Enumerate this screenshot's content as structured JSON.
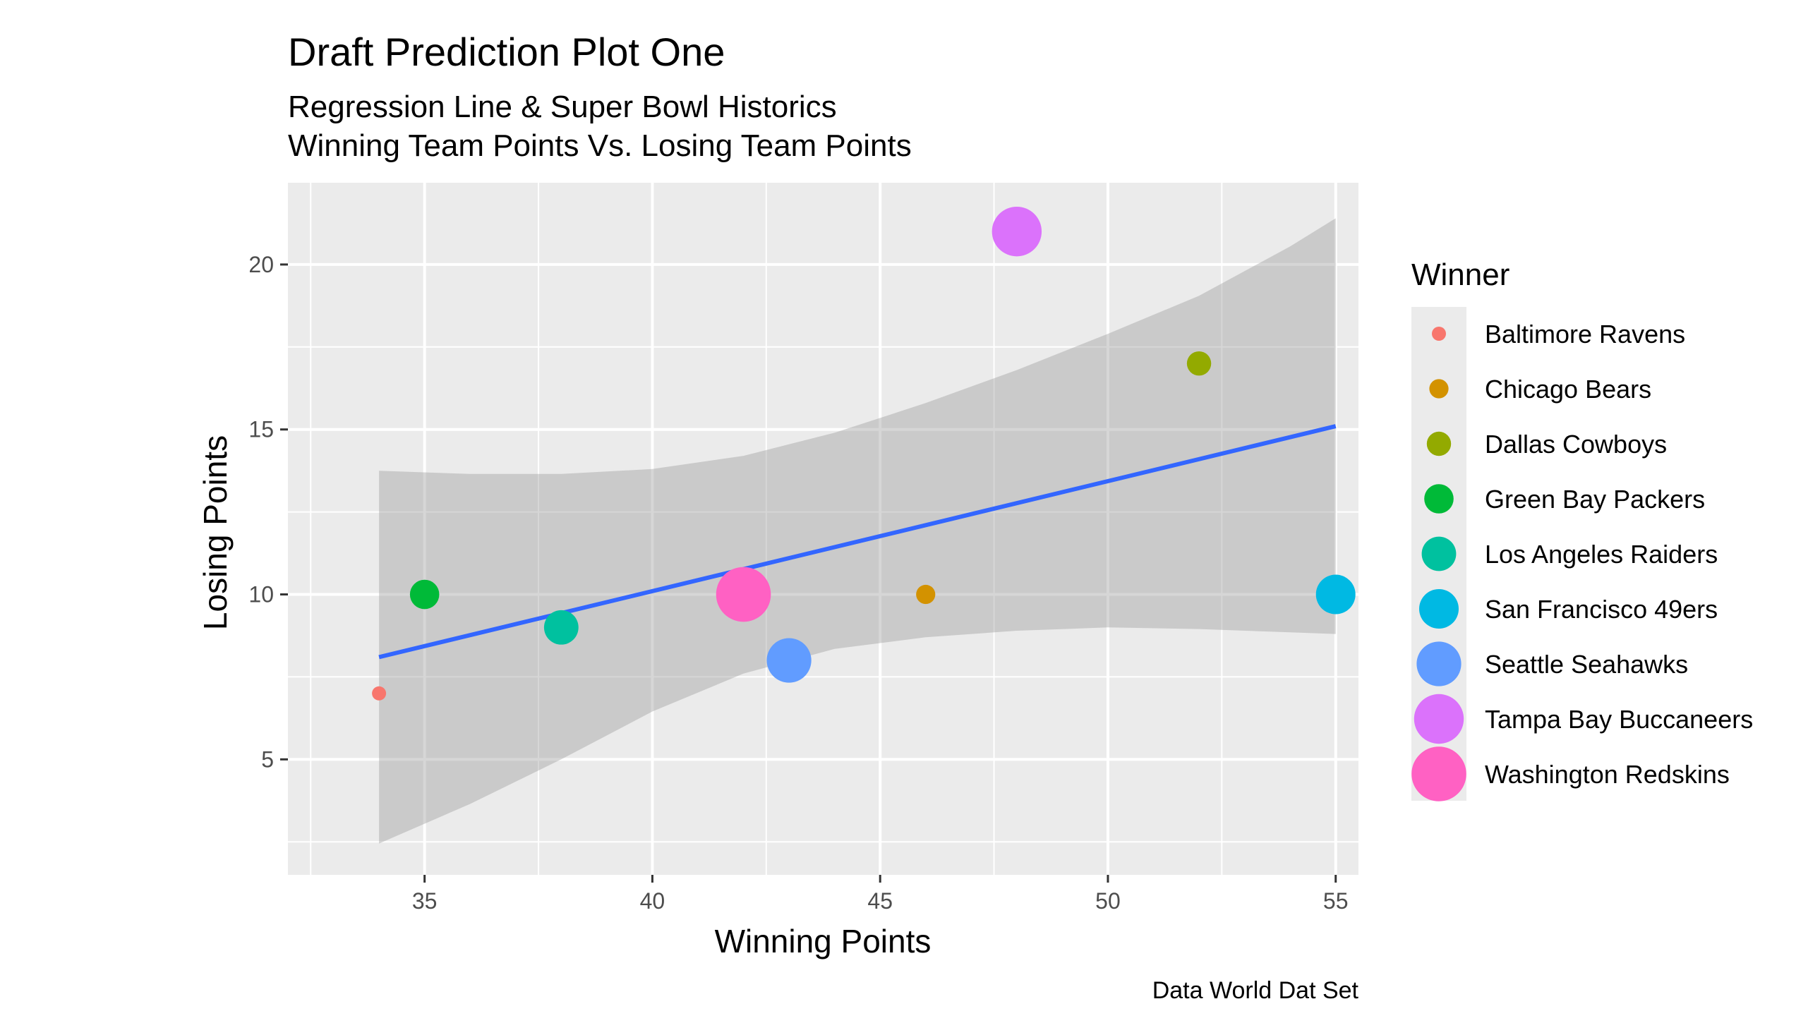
{
  "chart_data": {
    "type": "scatter",
    "title": "Draft Prediction Plot One",
    "subtitle_lines": [
      "Regression Line & Super Bowl Historics",
      "Winning Team Points Vs. Losing Team Points"
    ],
    "xlabel": "Winning Points",
    "ylabel": "Losing Points",
    "caption": "Data World Dat Set",
    "xlim": [
      32.0,
      55.5
    ],
    "ylim": [
      1.5,
      22.5
    ],
    "x_ticks": [
      35,
      40,
      45,
      50,
      55
    ],
    "y_ticks": [
      5,
      10,
      15,
      20
    ],
    "grid": true,
    "legend": {
      "title": "Winner",
      "position": "right",
      "entries": [
        {
          "name": "Baltimore Ravens",
          "color": "#F8766D"
        },
        {
          "name": "Chicago Bears",
          "color": "#D39200"
        },
        {
          "name": "Dallas Cowboys",
          "color": "#93AA00"
        },
        {
          "name": "Green Bay Packers",
          "color": "#00BA38"
        },
        {
          "name": "Los Angeles Raiders",
          "color": "#00C19F"
        },
        {
          "name": "San Francisco 49ers",
          "color": "#00B9E3"
        },
        {
          "name": "Seattle Seahawks",
          "color": "#619CFF"
        },
        {
          "name": "Tampa Bay Buccaneers",
          "color": "#DB72FB"
        },
        {
          "name": "Washington Redskins",
          "color": "#FF61C3"
        }
      ]
    },
    "points": [
      {
        "x": 34,
        "y": 7,
        "team": "Baltimore Ravens"
      },
      {
        "x": 35,
        "y": 10,
        "team": "Green Bay Packers"
      },
      {
        "x": 38,
        "y": 9,
        "team": "Los Angeles Raiders"
      },
      {
        "x": 42,
        "y": 10,
        "team": "Washington Redskins"
      },
      {
        "x": 43,
        "y": 8,
        "team": "Seattle Seahawks"
      },
      {
        "x": 46,
        "y": 10,
        "team": "Chicago Bears"
      },
      {
        "x": 48,
        "y": 21,
        "team": "Tampa Bay Buccaneers"
      },
      {
        "x": 52,
        "y": 17,
        "team": "Dallas Cowboys"
      },
      {
        "x": 55,
        "y": 10,
        "team": "San Francisco 49ers"
      }
    ],
    "regression": {
      "color": "#3366FF",
      "x": [
        34,
        55
      ],
      "y": [
        8.1,
        15.1
      ],
      "confidence_band": {
        "color": "#999999",
        "x": [
          34,
          36,
          38,
          40,
          42,
          44,
          46,
          48,
          50,
          52,
          54,
          55
        ],
        "upper": [
          13.75,
          13.65,
          13.65,
          13.8,
          14.2,
          14.9,
          15.8,
          16.8,
          17.9,
          19.05,
          20.55,
          21.4
        ],
        "lower": [
          2.45,
          3.65,
          5.0,
          6.45,
          7.6,
          8.35,
          8.7,
          8.9,
          9.0,
          8.95,
          8.85,
          8.8
        ]
      }
    }
  }
}
